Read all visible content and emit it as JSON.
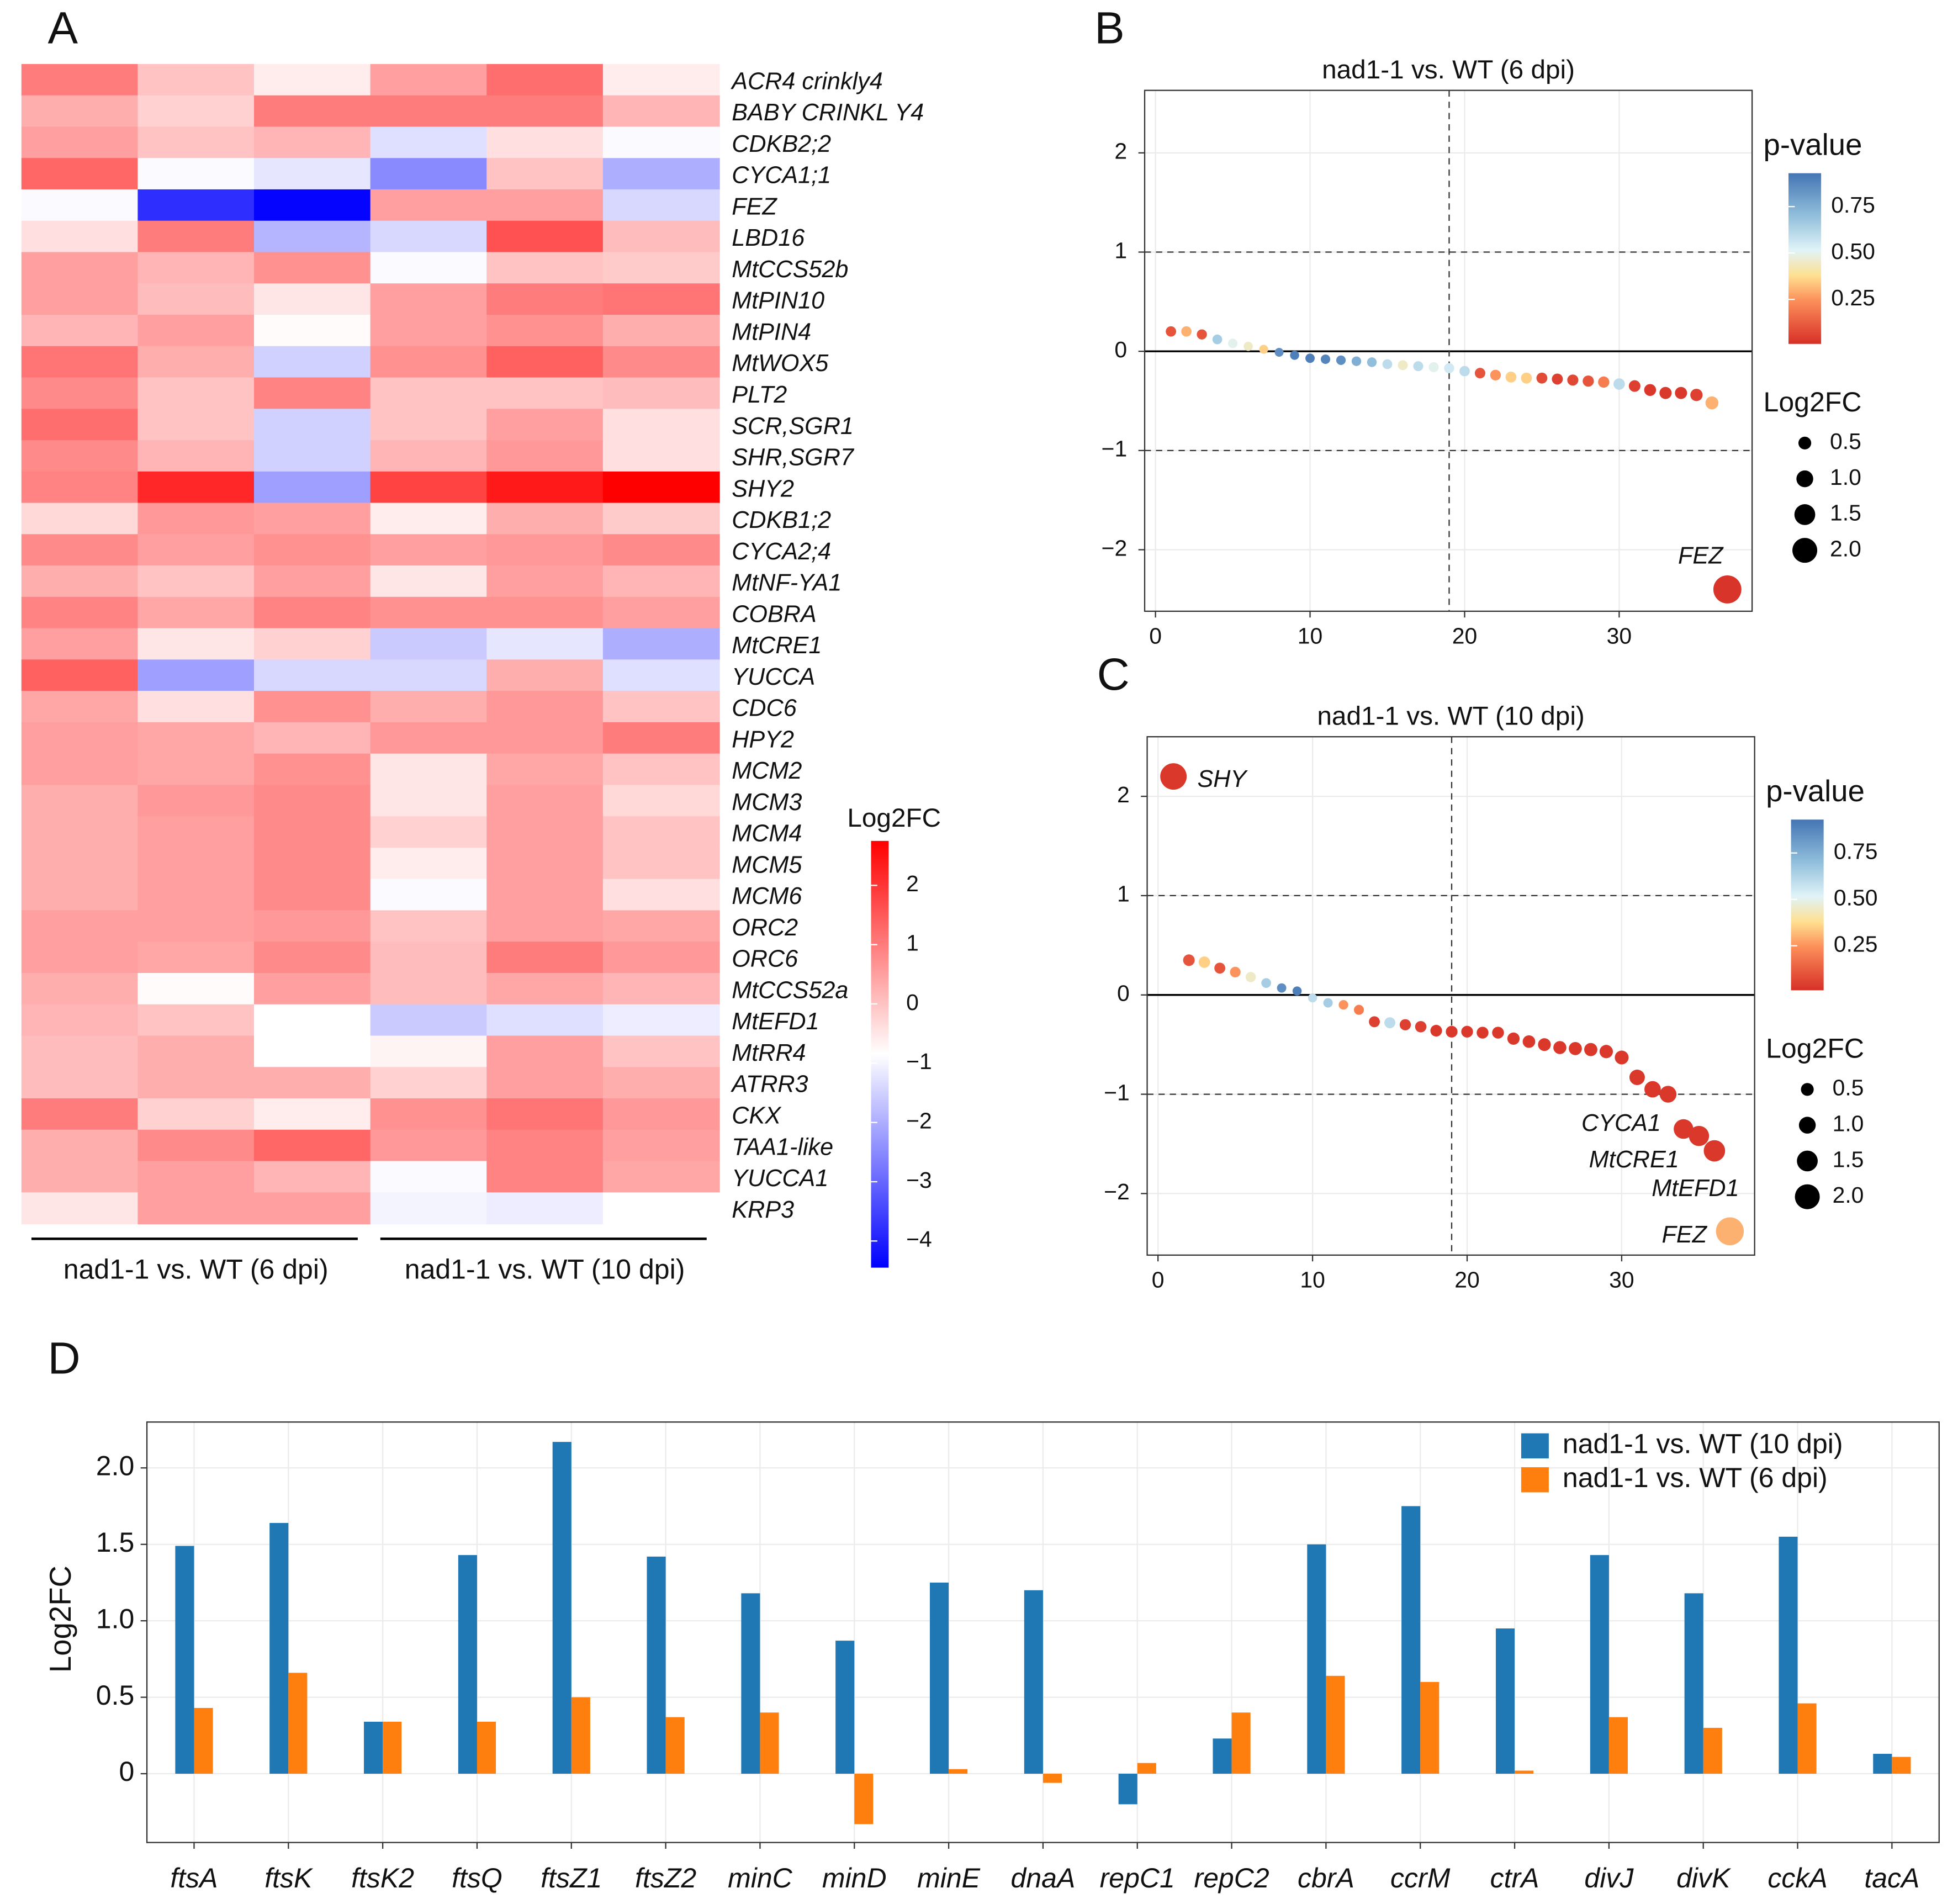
{
  "chart_data": [
    {
      "type": "heatmap",
      "panel_label": "A",
      "rows": [
        "ACR4 crinkly4",
        "BABY CRINKL Y4",
        "CDKB2;2",
        "CYCA1;1",
        "FEZ",
        "LBD16",
        "MtCCS52b",
        "MtPIN10",
        "MtPIN4",
        "MtWOX5",
        "PLT2",
        "SCR,SGR1",
        "SHR,SGR7",
        "SHY2",
        "CDKB1;2",
        "CYCA2;4",
        "MtNF-YA1",
        "COBRA",
        "MtCRE1",
        "YUCCA",
        "CDC6",
        "HPY2",
        "MCM2",
        "MCM3",
        "MCM4",
        "MCM5",
        "MCM6",
        "ORC2",
        "ORC6",
        "MtCCS52a",
        "MtEFD1",
        "MtRR4",
        "ATRR3",
        "CKX",
        "TAA1-like",
        "YUCCA1",
        "KRP3"
      ],
      "column_groups": [
        "nad1-1 vs. WT (6 dpi)",
        "nad1-1 vs. WT (10 dpi)"
      ],
      "values": [
        [
          1.0,
          0.0,
          -0.6,
          0.5,
          1.2,
          -0.6
        ],
        [
          0.3,
          -0.2,
          1.0,
          1.0,
          1.0,
          0.2
        ],
        [
          0.5,
          0.0,
          0.2,
          -1.3,
          -0.4,
          -0.9
        ],
        [
          1.3,
          -0.9,
          -1.2,
          -2.5,
          0.0,
          -2.0
        ],
        [
          -0.9,
          -3.8,
          -4.4,
          0.5,
          0.5,
          -1.4
        ],
        [
          -0.4,
          1.0,
          -1.9,
          -1.4,
          1.6,
          0.1
        ],
        [
          0.5,
          0.2,
          0.7,
          -0.9,
          0.0,
          -0.1
        ],
        [
          0.5,
          0.1,
          -0.5,
          0.5,
          1.0,
          1.1
        ],
        [
          0.2,
          0.5,
          -0.8,
          0.5,
          0.7,
          0.3
        ],
        [
          1.1,
          0.3,
          -1.5,
          0.7,
          1.4,
          0.8
        ],
        [
          0.8,
          0.0,
          0.9,
          0.0,
          0.0,
          0.1
        ],
        [
          1.2,
          0.0,
          -1.5,
          0.0,
          0.5,
          -0.4
        ],
        [
          0.8,
          0.2,
          -1.5,
          0.2,
          0.6,
          -0.4
        ],
        [
          0.9,
          2.2,
          -2.2,
          1.8,
          2.4,
          2.75
        ],
        [
          -0.3,
          0.6,
          0.5,
          -0.6,
          0.3,
          -0.1
        ],
        [
          0.8,
          0.5,
          0.7,
          0.5,
          0.6,
          0.8
        ],
        [
          0.3,
          0.0,
          0.5,
          -0.5,
          0.5,
          0.2
        ],
        [
          0.9,
          0.4,
          0.9,
          0.7,
          0.7,
          0.5
        ],
        [
          0.5,
          -0.5,
          -0.2,
          -1.6,
          -1.2,
          -2.0
        ],
        [
          1.4,
          -2.2,
          -1.4,
          -1.4,
          0.3,
          -1.3
        ],
        [
          0.4,
          -0.4,
          0.7,
          0.3,
          0.6,
          0.0
        ],
        [
          0.5,
          0.4,
          0.2,
          0.6,
          0.6,
          1.0
        ],
        [
          0.5,
          0.4,
          0.7,
          -0.5,
          0.4,
          0.0
        ],
        [
          0.3,
          0.6,
          0.8,
          -0.5,
          0.5,
          -0.3
        ],
        [
          0.3,
          0.5,
          0.8,
          -0.2,
          0.5,
          0.0
        ],
        [
          0.3,
          0.5,
          0.8,
          -0.6,
          0.5,
          0.0
        ],
        [
          0.3,
          0.5,
          0.8,
          -0.9,
          0.5,
          -0.4
        ],
        [
          0.5,
          0.5,
          0.6,
          0.0,
          0.5,
          0.4
        ],
        [
          0.5,
          0.4,
          0.8,
          0.1,
          1.0,
          0.6
        ],
        [
          0.3,
          -0.8,
          0.5,
          0.1,
          0.4,
          0.2
        ],
        [
          0.2,
          0.0,
          -0.85,
          -1.6,
          -1.3,
          -1.1
        ],
        [
          0.1,
          0.3,
          -0.85,
          -0.7,
          0.5,
          0.0
        ],
        [
          0.1,
          0.3,
          0.3,
          -0.2,
          0.5,
          0.3
        ],
        [
          1.0,
          -0.2,
          -0.6,
          0.7,
          1.1,
          0.6
        ],
        [
          0.3,
          0.8,
          1.3,
          0.6,
          0.9,
          0.5
        ],
        [
          0.3,
          0.5,
          0.2,
          -0.9,
          0.9,
          0.4
        ],
        [
          -0.5,
          0.5,
          0.5,
          -1.0,
          -1.1,
          -0.85
        ]
      ],
      "colorbar_title": "Log2FC",
      "vlim": [
        -4.45,
        2.75
      ],
      "low_color": "#0000ff",
      "high_color": "#ff0000",
      "colorbar_ticks": [
        2,
        1,
        0,
        {
          "value": -1,
          "label": "−1"
        },
        {
          "value": -2,
          "label": "−2"
        },
        {
          "value": -3,
          "label": "−3"
        },
        {
          "value": -4,
          "label": "−4"
        }
      ]
    },
    {
      "type": "scatter",
      "panel_label": "B",
      "title": "nad1-1 vs. WT (6 dpi)",
      "x": [
        1,
        2,
        3,
        4,
        5,
        6,
        7,
        8,
        9,
        10,
        11,
        12,
        13,
        14,
        15,
        16,
        17,
        18,
        19,
        20,
        21,
        22,
        23,
        24,
        25,
        26,
        27,
        28,
        29,
        30,
        31,
        32,
        33,
        34,
        35,
        36,
        37
      ],
      "values": [
        0.2,
        0.2,
        0.17,
        0.12,
        0.08,
        0.05,
        0.02,
        -0.01,
        -0.04,
        -0.07,
        -0.08,
        -0.09,
        -0.1,
        -0.11,
        -0.13,
        -0.14,
        -0.15,
        -0.16,
        -0.17,
        -0.2,
        -0.22,
        -0.24,
        -0.26,
        -0.27,
        -0.27,
        -0.28,
        -0.29,
        -0.3,
        -0.31,
        -0.33,
        -0.35,
        -0.39,
        -0.42,
        -0.42,
        -0.44,
        -0.52,
        -2.4
      ],
      "sizes": [
        0.2,
        0.2,
        0.17,
        0.12,
        0.08,
        0.05,
        0.02,
        0.01,
        0.04,
        0.07,
        0.08,
        0.09,
        0.1,
        0.11,
        0.13,
        0.14,
        0.15,
        0.16,
        0.17,
        0.2,
        0.22,
        0.24,
        0.26,
        0.27,
        0.27,
        0.28,
        0.29,
        0.3,
        0.31,
        0.33,
        0.35,
        0.39,
        0.42,
        0.42,
        0.44,
        0.52,
        2.4
      ],
      "pvalues": [
        0.1,
        0.3,
        0.1,
        0.65,
        0.5,
        0.45,
        0.35,
        0.85,
        0.9,
        0.9,
        0.88,
        0.85,
        0.75,
        0.7,
        0.6,
        0.45,
        0.6,
        0.5,
        0.55,
        0.6,
        0.1,
        0.25,
        0.35,
        0.35,
        0.08,
        0.05,
        0.07,
        0.1,
        0.2,
        0.6,
        0.05,
        0.03,
        0.03,
        0.03,
        0.05,
        0.3,
        0.02
      ],
      "xlim": [
        -0.7,
        38.6
      ],
      "ylim": [
        -2.62,
        2.63
      ],
      "xticks": [
        0,
        10,
        20,
        30
      ],
      "yticks": [
        {
          "value": -2,
          "label": "−2"
        },
        {
          "value": -1,
          "label": "−1"
        },
        0,
        1,
        2
      ],
      "reference_lines": {
        "h": [
          -1,
          1
        ],
        "v": [
          19
        ]
      },
      "annotations": [
        "FEZ"
      ],
      "color_legend_title": "p-value",
      "plim": [
        0.01,
        0.93
      ],
      "color_ticks": [
        0.75,
        {
          "value": 0.5,
          "label": "0.50"
        },
        0.25
      ],
      "size_legend_title": "Log2FC",
      "size_ticks": [
        0.5,
        {
          "value": 1,
          "label": "1.0"
        },
        1.5,
        {
          "value": 2,
          "label": "2.0"
        }
      ],
      "grid": true
    },
    {
      "type": "scatter",
      "panel_label": "C",
      "title": "nad1-1 vs. WT (10 dpi)",
      "x": [
        1,
        2,
        3,
        4,
        5,
        6,
        7,
        8,
        9,
        10,
        11,
        12,
        13,
        14,
        15,
        16,
        17,
        18,
        19,
        20,
        21,
        22,
        23,
        24,
        25,
        26,
        27,
        28,
        29,
        30,
        31,
        32,
        33,
        34,
        35,
        36,
        37
      ],
      "values": [
        2.2,
        0.35,
        0.33,
        0.27,
        0.23,
        0.18,
        0.12,
        0.07,
        0.04,
        -0.03,
        -0.08,
        -0.1,
        -0.15,
        -0.27,
        -0.28,
        -0.3,
        -0.32,
        -0.36,
        -0.37,
        -0.37,
        -0.38,
        -0.38,
        -0.44,
        -0.47,
        -0.5,
        -0.53,
        -0.54,
        -0.55,
        -0.57,
        -0.63,
        -0.83,
        -0.95,
        -1.0,
        -1.35,
        -1.42,
        -1.57,
        -2.38
      ],
      "sizes": [
        2.2,
        0.35,
        0.33,
        0.27,
        0.23,
        0.18,
        0.12,
        0.07,
        0.04,
        0.03,
        0.08,
        0.1,
        0.15,
        0.27,
        0.28,
        0.3,
        0.32,
        0.36,
        0.37,
        0.37,
        0.38,
        0.38,
        0.44,
        0.47,
        0.5,
        0.53,
        0.54,
        0.55,
        0.57,
        0.63,
        0.83,
        0.95,
        1.0,
        1.35,
        1.42,
        1.57,
        2.38
      ],
      "pvalues": [
        0.03,
        0.1,
        0.35,
        0.1,
        0.25,
        0.45,
        0.65,
        0.85,
        0.9,
        0.6,
        0.65,
        0.25,
        0.2,
        0.05,
        0.6,
        0.05,
        0.05,
        0.03,
        0.03,
        0.03,
        0.03,
        0.03,
        0.03,
        0.03,
        0.03,
        0.03,
        0.03,
        0.03,
        0.03,
        0.03,
        0.03,
        0.03,
        0.03,
        0.03,
        0.03,
        0.03,
        0.3
      ],
      "xlim": [
        -0.7,
        38.6
      ],
      "ylim": [
        -2.62,
        2.6
      ],
      "xticks": [
        0,
        10,
        20,
        30
      ],
      "yticks": [
        {
          "value": -2,
          "label": "−2"
        },
        {
          "value": -1,
          "label": "−1"
        },
        0,
        1,
        2
      ],
      "reference_lines": {
        "h": [
          -1,
          1
        ],
        "v": [
          19
        ]
      },
      "annotations": [
        "SHY",
        "CYCA1",
        "MtCRE1",
        "MtEFD1",
        "FEZ"
      ],
      "color_legend_title": "p-value",
      "plim": [
        0.01,
        0.93
      ],
      "color_ticks": [
        0.75,
        {
          "value": 0.5,
          "label": "0.50"
        },
        0.25
      ],
      "size_legend_title": "Log2FC",
      "size_ticks": [
        0.5,
        {
          "value": 1,
          "label": "1.0"
        },
        1.5,
        {
          "value": 2,
          "label": "2.0"
        }
      ],
      "grid": true
    },
    {
      "type": "bar",
      "panel_label": "D",
      "y_label": "Log2FC",
      "categories": [
        "ftsA",
        "ftsK",
        "ftsK2",
        "ftsQ",
        "ftsZ1",
        "ftsZ2",
        "minC",
        "minD",
        "minE",
        "dnaA",
        "repC1",
        "repC2",
        "cbrA",
        "ccrM",
        "ctrA",
        "divJ",
        "divK",
        "cckA",
        "tacA"
      ],
      "series": [
        {
          "name": "nad1-1 vs. WT (10 dpi)",
          "color": "#1f77b4",
          "values": [
            1.49,
            1.64,
            0.34,
            1.43,
            2.17,
            1.42,
            1.18,
            0.87,
            1.25,
            1.2,
            -0.2,
            0.23,
            1.5,
            1.75,
            0.95,
            1.43,
            1.18,
            1.55,
            0.13
          ]
        },
        {
          "name": "nad1-1 vs. WT (6 dpi)",
          "color": "#ff7f0e",
          "values": [
            0.43,
            0.66,
            0.34,
            0.34,
            0.5,
            0.37,
            0.4,
            -0.33,
            0.03,
            -0.06,
            0.07,
            0.4,
            0.64,
            0.6,
            0.02,
            0.37,
            0.3,
            0.46,
            0.11
          ]
        }
      ],
      "ylim": [
        -0.45,
        2.3
      ],
      "yticks": [
        0,
        0.5,
        {
          "value": 1,
          "label": "1.0"
        },
        1.5,
        {
          "value": 2,
          "label": "2.0"
        }
      ],
      "grid": true,
      "legend": "top-right"
    }
  ]
}
